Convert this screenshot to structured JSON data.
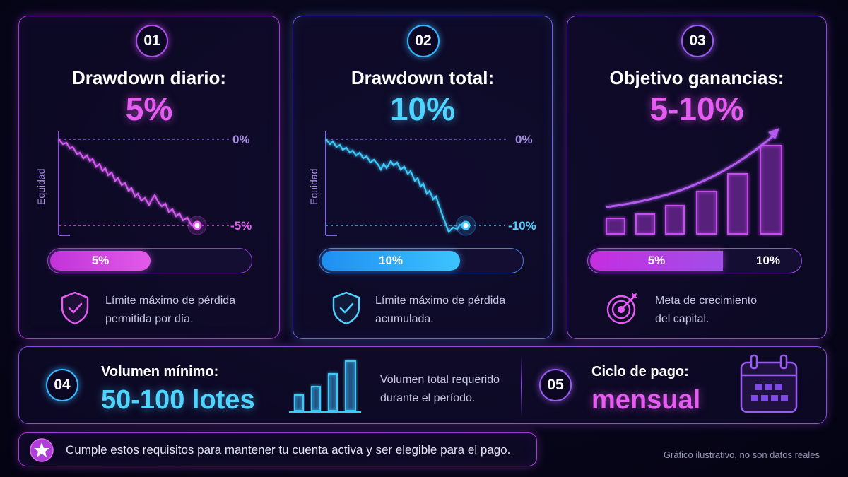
{
  "cards": [
    {
      "number": "01",
      "title": "Drawdown diario:",
      "value": "5%",
      "chart": {
        "y_axis_label": "Equidad",
        "top_line_label": "0%",
        "bottom_line_label": "-5%"
      },
      "progress": {
        "label": "5%",
        "fraction": 0.5
      },
      "description_line1": "Límite máximo de pérdida",
      "description_line2": "permitida por día.",
      "icon": "shield-check-icon"
    },
    {
      "number": "02",
      "title": "Drawdown total:",
      "value": "10%",
      "chart": {
        "y_axis_label": "Equidad",
        "top_line_label": "0%",
        "bottom_line_label": "-10%"
      },
      "progress": {
        "label": "10%",
        "fraction": 0.69
      },
      "description_line1": "Límite máximo de pérdida",
      "description_line2": "acumulada.",
      "icon": "shield-check-icon"
    },
    {
      "number": "03",
      "title": "Objetivo ganancias:",
      "value": "5-10%",
      "progress": {
        "label_left": "5%",
        "label_right": "10%",
        "fraction": 0.63
      },
      "description_line1": "Meta de crecimiento",
      "description_line2": "del capital.",
      "icon": "target-icon"
    }
  ],
  "volume": {
    "number": "04",
    "label": "Volumen mínimo:",
    "value": "50-100 lotes",
    "description_line1": "Volumen total requerido",
    "description_line2": "durante el período.",
    "icon": "bar-chart-icon"
  },
  "payment": {
    "number": "05",
    "label": "Ciclo de pago:",
    "value": "mensual",
    "icon": "calendar-icon"
  },
  "footer": {
    "note": "Cumple estos requisitos para mantener tu cuenta activa y ser elegible para el pago.",
    "icon": "star-icon",
    "disclaimer": "Gráfico ilustrativo, no son datos reales"
  },
  "colors": {
    "magenta": "#e45cf0",
    "cyan": "#4fd4ff",
    "violet": "#9a5cf0",
    "background": "#07061a"
  }
}
